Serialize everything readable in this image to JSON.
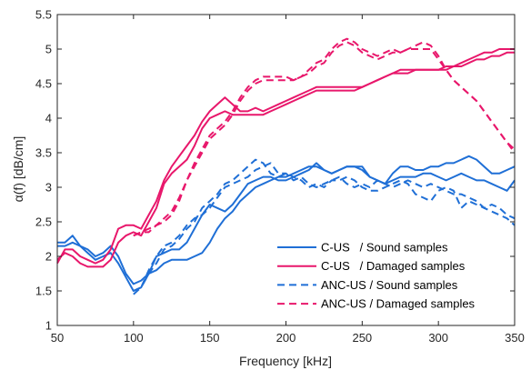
{
  "chart_data": {
    "type": "line",
    "xlabel": "Frequency [kHz]",
    "ylabel": "α(f) [dB/cm]",
    "xlim": [
      50,
      350
    ],
    "ylim": [
      1,
      5.5
    ],
    "xticks": [
      50,
      100,
      150,
      200,
      250,
      300,
      350
    ],
    "yticks": [
      1,
      1.5,
      2,
      2.5,
      3,
      3.5,
      4,
      4.5,
      5,
      5.5
    ],
    "xtick_labels": [
      "50",
      "100",
      "150",
      "200",
      "250",
      "300",
      "350"
    ],
    "ytick_labels": [
      "1",
      "1.5",
      "2",
      "2.5",
      "3",
      "3.5",
      "4",
      "4.5",
      "5",
      "5.5"
    ],
    "grid": false,
    "legend_position": "bottom-right",
    "colors": {
      "blue": "#1f6fd6",
      "magenta": "#e8176b"
    },
    "legend": [
      {
        "label": "C-US   / Sound samples",
        "color": "#1f6fd6",
        "dash": "solid"
      },
      {
        "label": "C-US   / Damaged samples",
        "color": "#e8176b",
        "dash": "solid"
      },
      {
        "label": "ANC-US / Sound samples",
        "color": "#1f6fd6",
        "dash": "dashed"
      },
      {
        "label": "ANC-US / Damaged samples",
        "color": "#e8176b",
        "dash": "dashed"
      }
    ],
    "series": [
      {
        "group": "C-US / Sound samples",
        "color": "#1f6fd6",
        "dash": "solid",
        "x": [
          50,
          55,
          60,
          65,
          70,
          75,
          80,
          85,
          90,
          95,
          100,
          105,
          110,
          115,
          120,
          125,
          130,
          135,
          140,
          145,
          150,
          155,
          160,
          165,
          170,
          175,
          180,
          185,
          190,
          195,
          200,
          205,
          210,
          215,
          220,
          225,
          230,
          235,
          240,
          245,
          250,
          255,
          260,
          265,
          270,
          275,
          280,
          285,
          290,
          295,
          300,
          305,
          310,
          315,
          320,
          325,
          330,
          335,
          340,
          345,
          350
        ],
        "y": [
          2.2,
          2.2,
          2.3,
          2.15,
          2.1,
          2.0,
          2.05,
          2.15,
          2.0,
          1.75,
          1.6,
          1.65,
          1.75,
          1.8,
          1.9,
          1.95,
          1.95,
          1.95,
          2.0,
          2.05,
          2.2,
          2.4,
          2.55,
          2.65,
          2.8,
          2.9,
          3.0,
          3.05,
          3.1,
          3.15,
          3.15,
          3.2,
          3.25,
          3.3,
          3.3,
          3.25,
          3.2,
          3.25,
          3.3,
          3.3,
          3.3,
          3.15,
          3.1,
          3.05,
          3.2,
          3.3,
          3.3,
          3.25,
          3.25,
          3.3,
          3.3,
          3.35,
          3.35,
          3.4,
          3.45,
          3.4,
          3.3,
          3.2,
          3.2,
          3.25,
          3.3
        ]
      },
      {
        "group": "C-US / Sound samples",
        "color": "#1f6fd6",
        "dash": "solid",
        "x": [
          50,
          55,
          60,
          65,
          70,
          75,
          80,
          85,
          90,
          95,
          100,
          105,
          110,
          115,
          120,
          125,
          130,
          135,
          140,
          145,
          150,
          155,
          160,
          165,
          170,
          175,
          180,
          185,
          190,
          195,
          200,
          205,
          210,
          215,
          220,
          225,
          230,
          235,
          240,
          245,
          250,
          255,
          260,
          265,
          270,
          275,
          280,
          285,
          290,
          295,
          300,
          305,
          310,
          315,
          320,
          325,
          330,
          335,
          340,
          345,
          350
        ],
        "y": [
          2.15,
          2.15,
          2.2,
          2.15,
          2.05,
          1.95,
          2.0,
          2.05,
          1.9,
          1.7,
          1.5,
          1.55,
          1.75,
          2.0,
          2.05,
          2.1,
          2.1,
          2.2,
          2.4,
          2.6,
          2.75,
          2.7,
          2.65,
          2.75,
          2.9,
          3.05,
          3.1,
          3.15,
          3.15,
          3.1,
          3.1,
          3.15,
          3.2,
          3.25,
          3.35,
          3.25,
          3.2,
          3.25,
          3.3,
          3.3,
          3.25,
          3.15,
          3.1,
          3.05,
          3.1,
          3.15,
          3.15,
          3.15,
          3.2,
          3.2,
          3.15,
          3.1,
          3.15,
          3.2,
          3.15,
          3.1,
          3.1,
          3.05,
          3.0,
          2.95,
          3.1
        ]
      },
      {
        "group": "C-US / Damaged samples",
        "color": "#e8176b",
        "dash": "solid",
        "x": [
          50,
          55,
          60,
          65,
          70,
          75,
          80,
          85,
          90,
          95,
          100,
          105,
          110,
          115,
          120,
          125,
          130,
          135,
          140,
          145,
          150,
          155,
          160,
          165,
          170,
          175,
          180,
          185,
          190,
          195,
          200,
          205,
          210,
          215,
          220,
          225,
          230,
          235,
          240,
          245,
          250,
          255,
          260,
          265,
          270,
          275,
          280,
          285,
          290,
          295,
          300,
          305,
          310,
          315,
          320,
          325,
          330,
          335,
          340,
          345,
          350
        ],
        "y": [
          1.9,
          2.1,
          2.1,
          2.0,
          1.95,
          1.9,
          1.95,
          2.1,
          2.4,
          2.45,
          2.45,
          2.4,
          2.6,
          2.8,
          3.1,
          3.3,
          3.45,
          3.6,
          3.75,
          3.95,
          4.1,
          4.2,
          4.3,
          4.2,
          4.1,
          4.1,
          4.15,
          4.1,
          4.15,
          4.2,
          4.25,
          4.3,
          4.35,
          4.4,
          4.45,
          4.45,
          4.45,
          4.45,
          4.45,
          4.45,
          4.45,
          4.5,
          4.55,
          4.6,
          4.65,
          4.7,
          4.7,
          4.7,
          4.7,
          4.7,
          4.7,
          4.75,
          4.75,
          4.8,
          4.85,
          4.9,
          4.95,
          4.95,
          5.0,
          5.0,
          5.0
        ]
      },
      {
        "group": "C-US / Damaged samples",
        "color": "#e8176b",
        "dash": "solid",
        "x": [
          50,
          55,
          60,
          65,
          70,
          75,
          80,
          85,
          90,
          95,
          100,
          105,
          110,
          115,
          120,
          125,
          130,
          135,
          140,
          145,
          150,
          155,
          160,
          165,
          170,
          175,
          180,
          185,
          190,
          195,
          200,
          205,
          210,
          215,
          220,
          225,
          230,
          235,
          240,
          245,
          250,
          255,
          260,
          265,
          270,
          275,
          280,
          285,
          290,
          295,
          300,
          305,
          310,
          315,
          320,
          325,
          330,
          335,
          340,
          345,
          350
        ],
        "y": [
          1.95,
          2.05,
          2.0,
          1.9,
          1.85,
          1.85,
          1.85,
          1.95,
          2.2,
          2.3,
          2.35,
          2.3,
          2.5,
          2.7,
          3.05,
          3.2,
          3.3,
          3.4,
          3.6,
          3.85,
          4.0,
          4.05,
          4.1,
          4.05,
          4.05,
          4.05,
          4.05,
          4.05,
          4.1,
          4.15,
          4.2,
          4.25,
          4.3,
          4.35,
          4.4,
          4.4,
          4.4,
          4.4,
          4.4,
          4.4,
          4.45,
          4.5,
          4.55,
          4.6,
          4.65,
          4.65,
          4.65,
          4.7,
          4.7,
          4.7,
          4.7,
          4.7,
          4.75,
          4.75,
          4.8,
          4.85,
          4.85,
          4.9,
          4.9,
          4.95,
          4.95
        ]
      },
      {
        "group": "ANC-US / Sound samples",
        "color": "#1f6fd6",
        "dash": "dashed",
        "x": [
          100,
          105,
          110,
          115,
          120,
          125,
          130,
          135,
          140,
          145,
          150,
          155,
          160,
          165,
          170,
          175,
          180,
          185,
          190,
          195,
          200,
          205,
          210,
          215,
          220,
          225,
          230,
          235,
          240,
          245,
          250,
          255,
          260,
          265,
          270,
          275,
          280,
          285,
          290,
          295,
          300,
          305,
          310,
          315,
          320,
          325,
          330,
          335,
          340,
          345,
          350
        ],
        "y": [
          1.5,
          1.55,
          1.75,
          1.9,
          2.1,
          2.15,
          2.25,
          2.4,
          2.5,
          2.7,
          2.8,
          2.9,
          3.05,
          3.1,
          3.2,
          3.3,
          3.4,
          3.35,
          3.2,
          3.15,
          3.2,
          3.15,
          3.1,
          3.0,
          3.05,
          3.0,
          3.1,
          3.1,
          3.15,
          3.1,
          3.0,
          2.95,
          2.95,
          3.0,
          3.05,
          3.1,
          3.05,
          2.9,
          2.85,
          2.8,
          2.95,
          3.0,
          2.95,
          2.7,
          2.8,
          2.75,
          2.7,
          2.65,
          2.6,
          2.55,
          2.45
        ]
      },
      {
        "group": "ANC-US / Sound samples",
        "color": "#1f6fd6",
        "dash": "dashed",
        "x": [
          100,
          105,
          110,
          115,
          120,
          125,
          130,
          135,
          140,
          145,
          150,
          155,
          160,
          165,
          170,
          175,
          180,
          185,
          190,
          195,
          200,
          205,
          210,
          215,
          220,
          225,
          230,
          235,
          240,
          245,
          250,
          255,
          260,
          265,
          270,
          275,
          280,
          285,
          290,
          295,
          300,
          305,
          310,
          315,
          320,
          325,
          330,
          335,
          340,
          345,
          350
        ],
        "y": [
          1.45,
          1.55,
          1.8,
          2.0,
          2.15,
          2.2,
          2.3,
          2.45,
          2.55,
          2.6,
          2.7,
          2.85,
          3.0,
          3.05,
          3.1,
          3.15,
          3.25,
          3.3,
          3.35,
          3.2,
          3.2,
          3.1,
          3.15,
          3.05,
          3.0,
          3.05,
          3.1,
          3.15,
          3.05,
          3.0,
          3.05,
          3.0,
          3.1,
          3.05,
          3.0,
          3.05,
          3.1,
          3.05,
          3.0,
          3.05,
          3.0,
          2.95,
          2.9,
          2.9,
          2.85,
          2.8,
          2.7,
          2.75,
          2.7,
          2.6,
          2.55
        ]
      },
      {
        "group": "ANC-US / Damaged samples",
        "color": "#e8176b",
        "dash": "dashed",
        "x": [
          100,
          105,
          110,
          115,
          120,
          125,
          130,
          135,
          140,
          145,
          150,
          155,
          160,
          165,
          170,
          175,
          180,
          185,
          190,
          195,
          200,
          205,
          210,
          215,
          220,
          225,
          230,
          235,
          240,
          245,
          250,
          255,
          260,
          265,
          270,
          275,
          280,
          285,
          290,
          295,
          300,
          305,
          310,
          315,
          320,
          325,
          330,
          335,
          340,
          345,
          350
        ],
        "y": [
          2.3,
          2.35,
          2.4,
          2.45,
          2.5,
          2.6,
          2.8,
          3.1,
          3.35,
          3.55,
          3.75,
          3.85,
          3.95,
          4.1,
          4.3,
          4.45,
          4.55,
          4.6,
          4.6,
          4.6,
          4.6,
          4.55,
          4.6,
          4.7,
          4.8,
          4.85,
          5.0,
          5.1,
          5.15,
          5.1,
          5.0,
          4.95,
          4.9,
          4.95,
          5.0,
          4.95,
          5.0,
          5.05,
          5.1,
          5.05,
          4.9,
          4.7,
          4.55,
          4.45,
          4.35,
          4.25,
          4.1,
          3.95,
          3.8,
          3.65,
          3.55
        ]
      },
      {
        "group": "ANC-US / Damaged samples",
        "color": "#e8176b",
        "dash": "dashed",
        "x": [
          100,
          105,
          110,
          115,
          120,
          125,
          130,
          135,
          140,
          145,
          150,
          155,
          160,
          165,
          170,
          175,
          180,
          185,
          190,
          195,
          200,
          205,
          210,
          215,
          220,
          225,
          230,
          235,
          240,
          245,
          250,
          255,
          260,
          265,
          270,
          275,
          280,
          285,
          290,
          295,
          300,
          305,
          310,
          315,
          320,
          325,
          330,
          335,
          340,
          345,
          350
        ],
        "y": [
          2.3,
          2.35,
          2.35,
          2.45,
          2.55,
          2.65,
          2.85,
          3.1,
          3.3,
          3.5,
          3.7,
          3.8,
          3.9,
          4.05,
          4.25,
          4.4,
          4.5,
          4.55,
          4.55,
          4.55,
          4.55,
          4.55,
          4.6,
          4.65,
          4.75,
          4.8,
          4.95,
          5.05,
          5.1,
          5.05,
          4.95,
          4.9,
          4.85,
          4.9,
          4.95,
          4.95,
          5.0,
          5.0,
          5.0,
          5.0,
          4.85,
          4.7,
          4.55,
          4.45,
          4.35,
          4.25,
          4.1,
          3.95,
          3.8,
          3.65,
          3.5
        ]
      }
    ]
  }
}
